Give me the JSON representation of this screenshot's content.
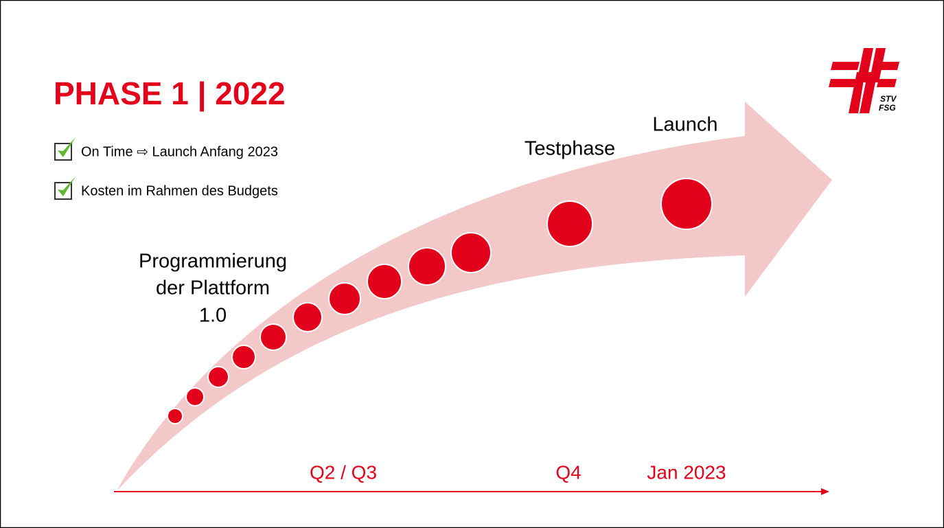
{
  "slide": {
    "title": "PHASE 1 | 2022",
    "bullets": [
      "On Time ⇨ Launch Anfang 2023",
      "Kosten im Rahmen des Budgets"
    ],
    "labels": {
      "programming": [
        "Programmierung",
        "der Plattform",
        "1.0"
      ],
      "test": "Testphase",
      "launch": "Launch"
    },
    "timeline": [
      "Q2 / Q3",
      "Q4",
      "Jan 2023"
    ],
    "logo": [
      "STV",
      "FSG"
    ]
  }
}
